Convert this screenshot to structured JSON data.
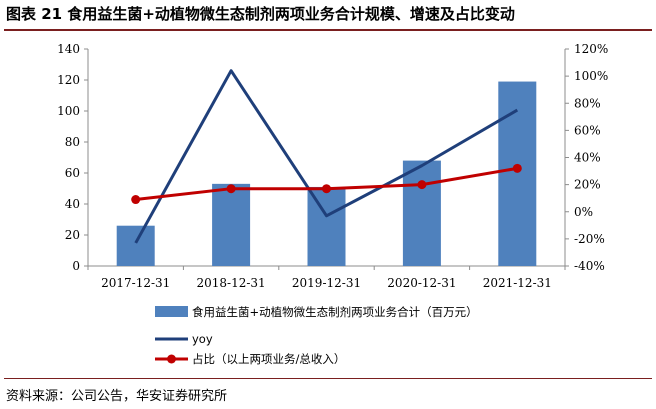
{
  "figure": {
    "title": "图表 21 食用益生菌+动植物微生态制剂两项业务合计规模、增速及占比变动",
    "source": "资料来源：公司公告，华安证券研究所"
  },
  "chart_data": {
    "type": "bar",
    "categories": [
      "2017-12-31",
      "2018-12-31",
      "2019-12-31",
      "2020-12-31",
      "2021-12-31"
    ],
    "series": [
      {
        "name": "食用益生菌+动植物微生态制剂两项业务合计（百万元）",
        "kind": "bar",
        "axis": "left",
        "color": "#4f81bd",
        "values": [
          26,
          53,
          51,
          68,
          119
        ]
      },
      {
        "name": "yoy",
        "kind": "line",
        "axis": "right",
        "color": "#1f3f7a",
        "values": [
          -23,
          104,
          -3,
          34,
          75
        ]
      },
      {
        "name": "占比（以上两项业务/总收入）",
        "kind": "line-marker",
        "axis": "right",
        "color": "#c00000",
        "values": [
          9,
          17,
          17,
          20,
          32
        ]
      }
    ],
    "y_left": {
      "min": 0,
      "max": 140,
      "step": 20,
      "ticks": [
        "0",
        "20",
        "40",
        "60",
        "80",
        "100",
        "120",
        "140"
      ]
    },
    "y_right": {
      "min": -40,
      "max": 120,
      "step": 20,
      "ticks": [
        "-40%",
        "-20%",
        "0%",
        "20%",
        "40%",
        "60%",
        "80%",
        "100%",
        "120%"
      ]
    },
    "legend_position": "bottom",
    "grid": false
  }
}
